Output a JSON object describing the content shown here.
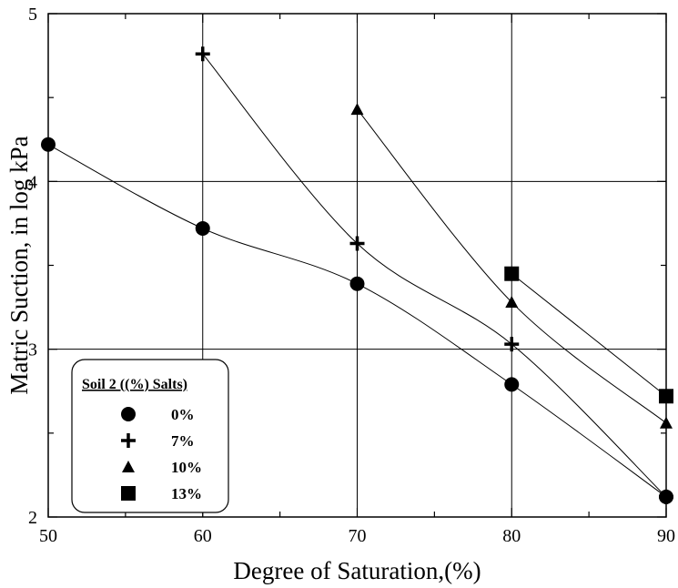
{
  "chart_data": {
    "type": "line",
    "title": "",
    "xlabel": "Degree of Saturation,(%)",
    "ylabel": "Matric Suction, in log kPa",
    "xlim": [
      50,
      90
    ],
    "ylim": [
      2,
      5
    ],
    "xticks": [
      50,
      60,
      70,
      80,
      90
    ],
    "yticks": [
      2,
      3,
      4,
      5
    ],
    "grid": true,
    "legend": {
      "title": "Soil 2 ((%) Salts)",
      "placement": "bottom-left"
    },
    "series": [
      {
        "name": "0%",
        "marker": "circle",
        "x": [
          50,
          60,
          70,
          80,
          90
        ],
        "y": [
          4.22,
          3.72,
          3.39,
          2.79,
          2.12
        ]
      },
      {
        "name": "7%",
        "marker": "plus",
        "x": [
          60,
          70,
          80,
          90
        ],
        "y": [
          4.76,
          3.63,
          3.03,
          2.12
        ]
      },
      {
        "name": "10%",
        "marker": "triangle",
        "x": [
          70,
          80,
          90
        ],
        "y": [
          4.43,
          3.28,
          2.56
        ]
      },
      {
        "name": "13%",
        "marker": "square",
        "x": [
          80,
          90
        ],
        "y": [
          3.45,
          2.72
        ]
      }
    ]
  }
}
